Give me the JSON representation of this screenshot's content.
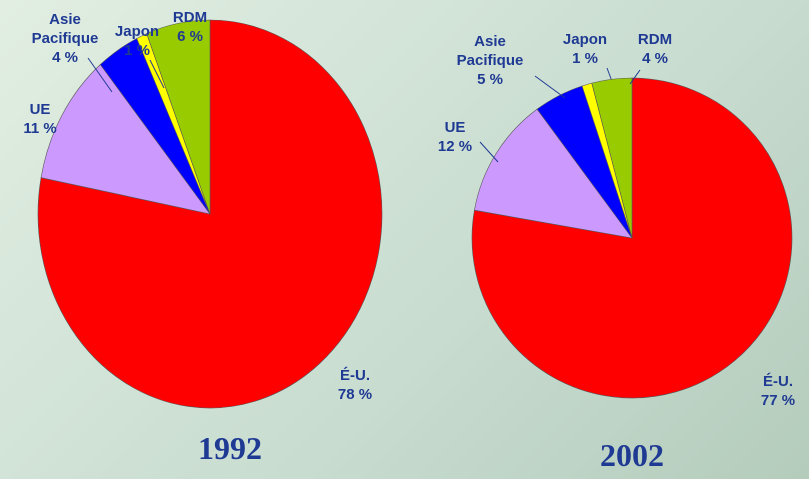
{
  "chart_data": [
    {
      "type": "pie",
      "title": "1992",
      "categories": [
        "É-U.",
        "UE",
        "Asie Pacifique",
        "Japon",
        "RDM"
      ],
      "values": [
        78,
        11,
        4,
        1,
        6
      ],
      "value_labels": [
        "78 %",
        "11 %",
        "4 %",
        "1 %",
        "6 %"
      ],
      "colors": [
        "#ff0000",
        "#cc99ff",
        "#0000ff",
        "#ffff00",
        "#99cc00"
      ]
    },
    {
      "type": "pie",
      "title": "2002",
      "categories": [
        "É-U.",
        "UE",
        "Asie Pacifique",
        "Japon",
        "RDM"
      ],
      "values": [
        77,
        12,
        5,
        1,
        4
      ],
      "value_labels": [
        "77 %",
        "12 %",
        "5 %",
        "1 %",
        "4 %"
      ],
      "colors": [
        "#ff0000",
        "#cc99ff",
        "#0000ff",
        "#ffff00",
        "#99cc00"
      ]
    }
  ]
}
